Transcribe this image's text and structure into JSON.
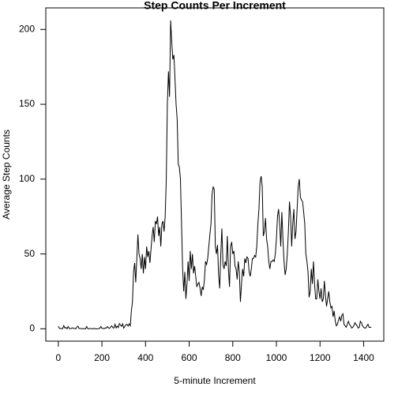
{
  "chart_data": {
    "type": "line",
    "title": "Step Counts Per Increment",
    "xlabel": "5-minute Increment",
    "ylabel": "Average Step Counts",
    "color": "#000000",
    "x": [
      0,
      5,
      10,
      15,
      20,
      25,
      30,
      35,
      40,
      45,
      50,
      55,
      60,
      65,
      70,
      75,
      80,
      85,
      90,
      95,
      100,
      105,
      110,
      115,
      120,
      125,
      130,
      135,
      140,
      145,
      150,
      155,
      160,
      165,
      170,
      175,
      180,
      185,
      190,
      195,
      200,
      205,
      210,
      215,
      220,
      225,
      230,
      235,
      240,
      245,
      250,
      255,
      260,
      265,
      270,
      275,
      280,
      285,
      290,
      295,
      300,
      305,
      310,
      315,
      320,
      325,
      330,
      335,
      340,
      345,
      350,
      355,
      360,
      365,
      370,
      375,
      380,
      385,
      390,
      395,
      400,
      405,
      410,
      415,
      420,
      425,
      430,
      435,
      440,
      445,
      450,
      455,
      460,
      465,
      470,
      475,
      480,
      485,
      490,
      495,
      500,
      505,
      510,
      515,
      520,
      525,
      530,
      535,
      540,
      545,
      550,
      555,
      560,
      565,
      570,
      575,
      580,
      585,
      590,
      595,
      600,
      605,
      610,
      615,
      620,
      625,
      630,
      635,
      640,
      645,
      650,
      655,
      660,
      665,
      670,
      675,
      680,
      685,
      690,
      695,
      700,
      705,
      710,
      715,
      720,
      725,
      730,
      735,
      740,
      745,
      750,
      755,
      760,
      765,
      770,
      775,
      780,
      785,
      790,
      795,
      800,
      805,
      810,
      815,
      820,
      825,
      830,
      835,
      840,
      845,
      850,
      855,
      860,
      865,
      870,
      875,
      880,
      885,
      890,
      895,
      900,
      905,
      910,
      915,
      920,
      925,
      930,
      935,
      940,
      945,
      950,
      955,
      960,
      965,
      970,
      975,
      980,
      985,
      990,
      995,
      1000,
      1005,
      1010,
      1015,
      1020,
      1025,
      1030,
      1035,
      1040,
      1045,
      1050,
      1055,
      1060,
      1065,
      1070,
      1075,
      1080,
      1085,
      1090,
      1095,
      1100,
      1105,
      1110,
      1115,
      1120,
      1125,
      1130,
      1135,
      1140,
      1145,
      1150,
      1155,
      1160,
      1165,
      1170,
      1175,
      1180,
      1185,
      1190,
      1195,
      1200,
      1205,
      1210,
      1215,
      1220,
      1225,
      1230,
      1235,
      1240,
      1245,
      1250,
      1255,
      1260,
      1265,
      1270,
      1275,
      1280,
      1285,
      1290,
      1295,
      1300,
      1305,
      1310,
      1315,
      1320,
      1325,
      1330,
      1335,
      1340,
      1345,
      1350,
      1355,
      1360,
      1365,
      1370,
      1375,
      1380,
      1385,
      1390,
      1395,
      1400,
      1405,
      1410,
      1415,
      1420,
      1425,
      1430,
      1435
    ],
    "values": [
      1.7,
      0.3,
      0.1,
      0.2,
      0.1,
      2.1,
      0.5,
      0.9,
      0,
      1.5,
      0.3,
      0.1,
      0.3,
      0.7,
      0.2,
      0.3,
      0,
      1.1,
      1.8,
      0.2,
      0.2,
      0.2,
      0,
      0.2,
      0,
      0,
      1.5,
      0.1,
      0,
      0.2,
      0.2,
      0,
      0,
      0.3,
      0,
      0,
      0,
      0.1,
      0.3,
      1.5,
      0.3,
      0.3,
      0,
      0.6,
      0.5,
      1.5,
      0.6,
      0.3,
      1.2,
      2.0,
      0.8,
      0.5,
      3.0,
      0.6,
      1.8,
      0.8,
      3.5,
      2.5,
      1.6,
      3.3,
      0.5,
      1.5,
      2.8,
      3.0,
      1.8,
      3.3,
      2.0,
      12,
      18,
      38,
      44,
      31,
      47,
      63,
      50,
      47,
      40,
      50,
      37,
      48,
      40,
      55,
      48,
      52,
      44,
      53,
      62,
      68,
      58,
      72,
      70,
      75,
      62,
      68,
      55,
      70,
      72,
      65,
      75,
      100,
      150,
      172,
      155,
      206,
      192,
      180,
      183,
      167,
      150,
      140,
      110,
      108,
      100,
      70,
      40,
      25,
      38,
      20,
      30,
      45,
      32,
      52,
      40,
      50,
      37,
      42,
      35,
      28,
      30,
      31,
      27,
      22,
      28,
      26,
      33,
      45,
      43,
      47,
      55,
      63,
      70,
      90,
      95,
      93,
      55,
      50,
      56,
      36,
      27,
      50,
      67,
      43,
      40,
      45,
      42,
      62,
      40,
      28,
      55,
      58,
      50,
      52,
      42,
      40,
      33,
      45,
      38,
      18,
      30,
      40,
      35,
      47,
      44,
      48,
      47,
      38,
      35,
      40,
      47,
      47,
      49,
      48,
      55,
      70,
      80,
      98,
      102,
      95,
      62,
      65,
      74,
      60,
      55,
      45,
      40,
      45,
      45,
      46,
      45,
      50,
      60,
      75,
      80,
      70,
      55,
      78,
      60,
      45,
      36,
      40,
      50,
      65,
      85,
      75,
      55,
      70,
      80,
      60,
      65,
      80,
      95,
      100,
      88,
      86,
      85,
      78,
      70,
      50,
      45,
      38,
      21,
      25,
      40,
      30,
      45,
      30,
      20,
      20,
      33,
      25,
      20,
      27,
      18,
      20,
      32,
      22,
      15,
      20,
      25,
      18,
      14,
      15,
      8,
      12,
      5,
      2,
      3,
      6,
      8,
      5,
      9,
      10,
      3,
      2,
      1,
      3,
      5,
      3,
      2,
      0.5,
      1,
      2,
      4,
      3,
      2,
      0.5,
      1,
      5,
      4,
      2,
      1,
      0.5,
      0.5,
      2,
      3,
      1,
      1,
      1
    ],
    "xlim": [
      -57.4,
      1492.4
    ],
    "ylim": [
      -8.25,
      214.4
    ],
    "xticks": [
      0,
      200,
      400,
      600,
      800,
      1000,
      1200,
      1400
    ],
    "yticks": [
      0,
      50,
      100,
      150,
      200
    ]
  }
}
